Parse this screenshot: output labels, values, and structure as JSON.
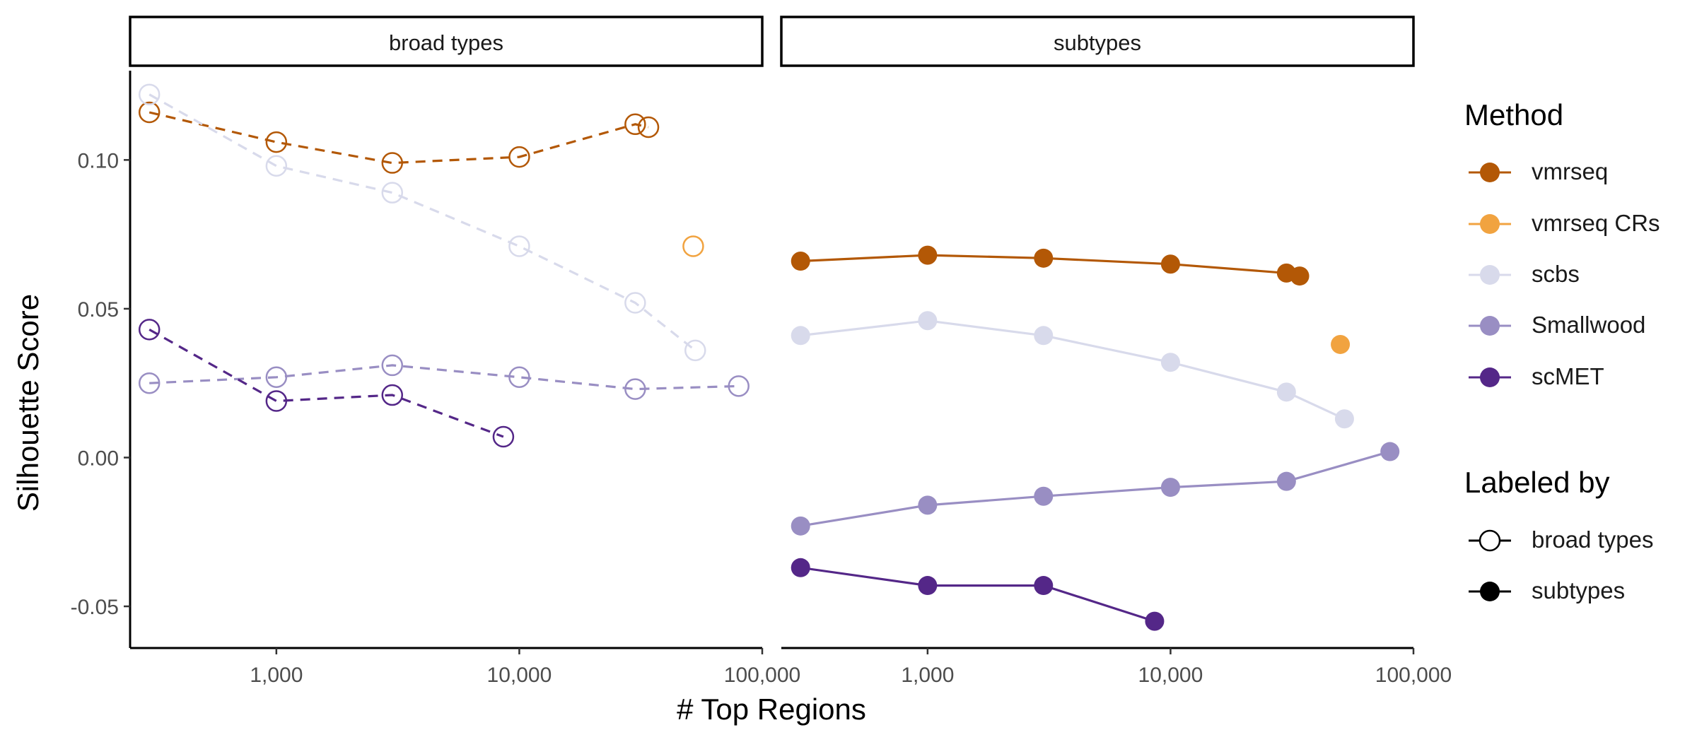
{
  "chart_data": {
    "type": "line",
    "x_scale": "log",
    "xlabel": "# Top Regions",
    "ylabel": "Silhouette Score",
    "xlim": [
      250,
      100000
    ],
    "ylim": [
      -0.064,
      0.13
    ],
    "x_ticks": [
      1000,
      10000,
      100000
    ],
    "x_tick_labels": [
      "1,000",
      "10,000",
      "100,000"
    ],
    "y_ticks": [
      -0.05,
      0,
      0.05,
      0.1
    ],
    "y_tick_labels": [
      "-0.05",
      "0.00",
      "0.05",
      "0.10"
    ],
    "grid": false,
    "legend_placement": "right",
    "colors": {
      "vmrseq": "#B35806",
      "vmrseq CRs": "#F1A340",
      "scbs": "#D8DAEB",
      "Smallwood": "#998EC3",
      "scMET": "#542788"
    },
    "legend": {
      "method_title": "Method",
      "methods": [
        "vmrseq",
        "vmrseq CRs",
        "scbs",
        "Smallwood",
        "scMET"
      ],
      "labeled_title": "Labeled by",
      "labeled": [
        "broad types",
        "subtypes"
      ]
    },
    "panels": [
      {
        "strip": "broad types",
        "marker": "open",
        "line": "dashed",
        "series": [
          {
            "name": "vmrseq",
            "x": [
              300,
              1000,
              3000,
              10000,
              30000,
              34000
            ],
            "y": [
              0.116,
              0.106,
              0.099,
              0.101,
              0.112,
              0.111
            ]
          },
          {
            "name": "vmrseq CRs",
            "x": [
              52000
            ],
            "y": [
              0.071
            ]
          },
          {
            "name": "scbs",
            "x": [
              300,
              1000,
              3000,
              10000,
              30000,
              53000
            ],
            "y": [
              0.122,
              0.098,
              0.089,
              0.071,
              0.052,
              0.036
            ]
          },
          {
            "name": "Smallwood",
            "x": [
              300,
              1000,
              3000,
              10000,
              30000,
              80000
            ],
            "y": [
              0.025,
              0.027,
              0.031,
              0.027,
              0.023,
              0.024
            ]
          },
          {
            "name": "scMET",
            "x": [
              300,
              1000,
              3000,
              8600
            ],
            "y": [
              0.043,
              0.019,
              0.021,
              0.007
            ]
          }
        ]
      },
      {
        "strip": "subtypes",
        "marker": "filled",
        "line": "solid",
        "series": [
          {
            "name": "vmrseq",
            "x": [
              300,
              1000,
              3000,
              10000,
              30000,
              34000
            ],
            "y": [
              0.066,
              0.068,
              0.067,
              0.065,
              0.062,
              0.061
            ]
          },
          {
            "name": "vmrseq CRs",
            "x": [
              50000
            ],
            "y": [
              0.038
            ]
          },
          {
            "name": "scbs",
            "x": [
              300,
              1000,
              3000,
              10000,
              30000,
              52000
            ],
            "y": [
              0.041,
              0.046,
              0.041,
              0.032,
              0.022,
              0.013
            ]
          },
          {
            "name": "Smallwood",
            "x": [
              300,
              1000,
              3000,
              10000,
              30000,
              80000
            ],
            "y": [
              -0.023,
              -0.016,
              -0.013,
              -0.01,
              -0.008,
              0.002
            ]
          },
          {
            "name": "scMET",
            "x": [
              300,
              1000,
              3000,
              8600
            ],
            "y": [
              -0.037,
              -0.043,
              -0.043,
              -0.055
            ]
          }
        ]
      }
    ]
  }
}
